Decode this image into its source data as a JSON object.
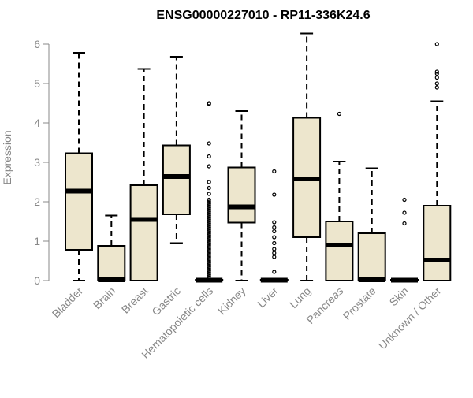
{
  "chart_data": {
    "type": "box",
    "title": "ENSG00000227010 - RP11-336K24.6",
    "ylabel": "Expression",
    "xlabel": "",
    "ylim": [
      0,
      6.3
    ],
    "yticks": [
      0,
      1,
      2,
      3,
      4,
      5,
      6
    ],
    "box_fill": "#ede6cd",
    "outline_color": "#000000",
    "axis_color": "#888888",
    "categories": [
      "Bladder",
      "Brain",
      "Breast",
      "Gastric",
      "Hematopoietic cells",
      "Kidney",
      "Liver",
      "Lung",
      "Pancreas",
      "Prostate",
      "Skin",
      "Unknown / Other"
    ],
    "boxes": [
      {
        "name": "Bladder",
        "whisker_low": 0,
        "q1": 0.78,
        "median": 2.27,
        "q3": 3.23,
        "whisker_high": 5.78,
        "outliers": []
      },
      {
        "name": "Brain",
        "whisker_low": 0,
        "q1": 0,
        "median": 0.02,
        "q3": 0.88,
        "whisker_high": 1.65,
        "outliers": []
      },
      {
        "name": "Breast",
        "whisker_low": 0,
        "q1": 0,
        "median": 1.55,
        "q3": 2.42,
        "whisker_high": 5.37,
        "outliers": []
      },
      {
        "name": "Gastric",
        "whisker_low": 0.95,
        "q1": 1.68,
        "median": 2.64,
        "q3": 3.43,
        "whisker_high": 5.68,
        "outliers": []
      },
      {
        "name": "Hematopoietic cells",
        "whisker_low": 0,
        "q1": 0,
        "median": 0.01,
        "q3": 0.02,
        "whisker_high": 0.04,
        "outliers": [
          0.1,
          0.15,
          0.2,
          0.25,
          0.3,
          0.35,
          0.4,
          0.45,
          0.5,
          0.55,
          0.6,
          0.65,
          0.7,
          0.75,
          0.8,
          0.85,
          0.9,
          0.95,
          1.0,
          1.05,
          1.1,
          1.15,
          1.2,
          1.25,
          1.3,
          1.35,
          1.4,
          1.45,
          1.5,
          1.55,
          1.6,
          1.65,
          1.7,
          1.75,
          1.8,
          1.85,
          1.9,
          1.95,
          2.0,
          2.05,
          2.2,
          2.35,
          2.5,
          2.9,
          3.15,
          3.48,
          4.48,
          4.5
        ]
      },
      {
        "name": "Kidney",
        "whisker_low": 0,
        "q1": 1.47,
        "median": 1.87,
        "q3": 2.87,
        "whisker_high": 4.3,
        "outliers": []
      },
      {
        "name": "Liver",
        "whisker_low": 0,
        "q1": 0,
        "median": 0.01,
        "q3": 0.02,
        "whisker_high": 0.04,
        "outliers": [
          0.22,
          0.6,
          0.7,
          0.8,
          0.95,
          1.1,
          1.25,
          1.35,
          1.48,
          2.18,
          2.77
        ]
      },
      {
        "name": "Lung",
        "whisker_low": 0,
        "q1": 1.1,
        "median": 2.58,
        "q3": 4.13,
        "whisker_high": 6.27,
        "outliers": []
      },
      {
        "name": "Pancreas",
        "whisker_low": 0,
        "q1": 0,
        "median": 0.9,
        "q3": 1.5,
        "whisker_high": 3.02,
        "outliers": [
          4.23
        ]
      },
      {
        "name": "Prostate",
        "whisker_low": 0,
        "q1": 0,
        "median": 0.02,
        "q3": 1.2,
        "whisker_high": 2.85,
        "outliers": []
      },
      {
        "name": "Skin",
        "whisker_low": 0,
        "q1": 0,
        "median": 0.01,
        "q3": 0.02,
        "whisker_high": 0.04,
        "outliers": [
          1.45,
          1.72,
          2.05
        ]
      },
      {
        "name": "Unknown / Other",
        "whisker_low": 0,
        "q1": 0,
        "median": 0.52,
        "q3": 1.9,
        "whisker_high": 4.55,
        "outliers": [
          4.9,
          5.0,
          5.15,
          5.25,
          5.3,
          6.0
        ]
      }
    ]
  }
}
